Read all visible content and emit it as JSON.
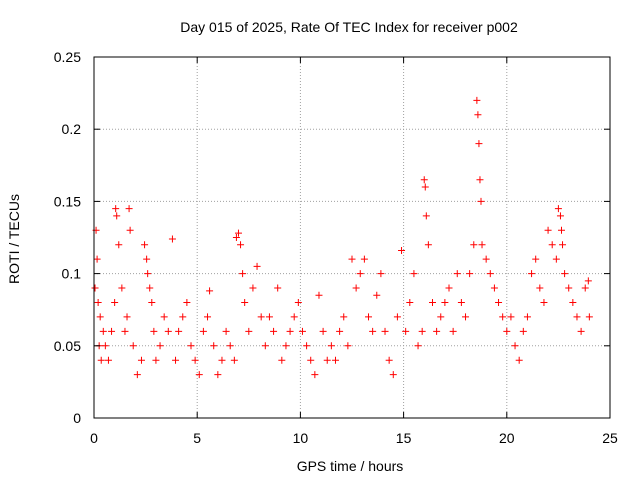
{
  "chart_data": {
    "type": "scatter",
    "title": "Day 015 of 2025, Rate Of TEC Index for receiver p002",
    "xlabel": "GPS time / hours",
    "ylabel": "ROTI / TECUs",
    "xlim": [
      0,
      25
    ],
    "ylim": [
      0,
      0.25
    ],
    "xticks": [
      0,
      5,
      10,
      15,
      20,
      25
    ],
    "xtick_labels": [
      "0",
      "5",
      "10",
      "15",
      "20",
      "25"
    ],
    "yticks": [
      0,
      0.05,
      0.1,
      0.15,
      0.2,
      0.25
    ],
    "ytick_labels": [
      "0",
      "0.05",
      "0.1",
      "0.15",
      "0.2",
      "0.25"
    ],
    "grid": true,
    "marker": "plus",
    "color": "#ff0000",
    "series": [
      {
        "name": "ROTI",
        "x": [
          0.05,
          0.1,
          0.15,
          0.2,
          0.25,
          0.3,
          0.35,
          0.45,
          0.55,
          0.7,
          0.85,
          1.0,
          1.05,
          1.1,
          1.2,
          1.35,
          1.5,
          1.6,
          1.7,
          1.75,
          1.9,
          2.1,
          2.3,
          2.45,
          2.55,
          2.6,
          2.7,
          2.8,
          2.9,
          3.0,
          3.2,
          3.4,
          3.6,
          3.8,
          3.95,
          4.1,
          4.3,
          4.5,
          4.7,
          4.9,
          5.1,
          5.3,
          5.5,
          5.6,
          5.8,
          6.0,
          6.2,
          6.4,
          6.6,
          6.8,
          6.9,
          7.0,
          7.1,
          7.2,
          7.3,
          7.5,
          7.7,
          7.9,
          8.1,
          8.3,
          8.5,
          8.7,
          8.9,
          9.1,
          9.3,
          9.5,
          9.7,
          9.9,
          10.1,
          10.3,
          10.5,
          10.7,
          10.9,
          11.1,
          11.3,
          11.5,
          11.7,
          11.9,
          12.1,
          12.3,
          12.5,
          12.7,
          12.9,
          13.1,
          13.3,
          13.5,
          13.7,
          13.9,
          14.1,
          14.3,
          14.5,
          14.7,
          14.9,
          15.1,
          15.3,
          15.5,
          15.7,
          15.9,
          16.0,
          16.05,
          16.1,
          16.2,
          16.4,
          16.6,
          16.8,
          17.0,
          17.2,
          17.4,
          17.6,
          17.8,
          18.0,
          18.2,
          18.4,
          18.55,
          18.6,
          18.65,
          18.7,
          18.75,
          18.8,
          19.0,
          19.2,
          19.4,
          19.6,
          19.8,
          20.0,
          20.2,
          20.4,
          20.6,
          20.8,
          21.0,
          21.2,
          21.4,
          21.6,
          21.8,
          22.0,
          22.2,
          22.4,
          22.5,
          22.6,
          22.65,
          22.7,
          22.8,
          23.0,
          23.2,
          23.4,
          23.6,
          23.8,
          23.95,
          24.0
        ],
        "y": [
          0.09,
          0.13,
          0.11,
          0.08,
          0.05,
          0.07,
          0.04,
          0.06,
          0.05,
          0.04,
          0.06,
          0.08,
          0.145,
          0.14,
          0.12,
          0.09,
          0.06,
          0.07,
          0.145,
          0.13,
          0.05,
          0.03,
          0.04,
          0.12,
          0.11,
          0.1,
          0.09,
          0.08,
          0.06,
          0.04,
          0.05,
          0.07,
          0.06,
          0.124,
          0.04,
          0.06,
          0.07,
          0.08,
          0.05,
          0.04,
          0.03,
          0.06,
          0.07,
          0.088,
          0.05,
          0.03,
          0.04,
          0.06,
          0.05,
          0.04,
          0.125,
          0.128,
          0.12,
          0.1,
          0.08,
          0.06,
          0.09,
          0.105,
          0.07,
          0.05,
          0.07,
          0.06,
          0.09,
          0.04,
          0.05,
          0.06,
          0.07,
          0.08,
          0.06,
          0.05,
          0.04,
          0.03,
          0.085,
          0.06,
          0.04,
          0.05,
          0.04,
          0.06,
          0.07,
          0.05,
          0.11,
          0.09,
          0.1,
          0.11,
          0.07,
          0.06,
          0.085,
          0.1,
          0.06,
          0.04,
          0.03,
          0.07,
          0.116,
          0.06,
          0.08,
          0.1,
          0.05,
          0.06,
          0.165,
          0.16,
          0.14,
          0.12,
          0.08,
          0.06,
          0.07,
          0.08,
          0.09,
          0.06,
          0.1,
          0.08,
          0.07,
          0.1,
          0.12,
          0.22,
          0.21,
          0.19,
          0.165,
          0.15,
          0.12,
          0.11,
          0.1,
          0.09,
          0.08,
          0.07,
          0.06,
          0.07,
          0.05,
          0.04,
          0.06,
          0.07,
          0.1,
          0.11,
          0.09,
          0.08,
          0.13,
          0.12,
          0.11,
          0.145,
          0.14,
          0.13,
          0.12,
          0.1,
          0.09,
          0.08,
          0.07,
          0.06,
          0.09,
          0.095,
          0.07
        ]
      }
    ]
  }
}
